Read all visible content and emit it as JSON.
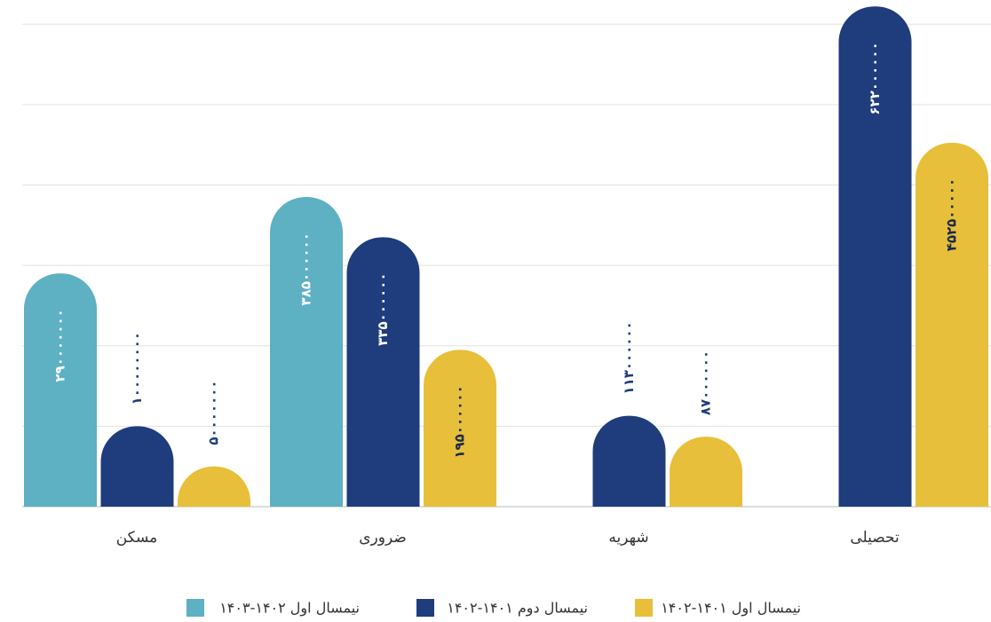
{
  "chart_data": {
    "type": "bar",
    "categories": [
      "مسکن",
      "ضروری",
      "شهریه",
      "تحصیلی"
    ],
    "series": [
      {
        "name": "نیمسال اول ۱۴۰۲-۱۴۰۳",
        "color": "#5eb0c3",
        "values": [
          290000000,
          385000000,
          null,
          null
        ],
        "value_labels": [
          "۲۹۰۰۰۰۰۰۰",
          "۳۸۵۰۰۰۰۰۰",
          null,
          null
        ]
      },
      {
        "name": "نیمسال دوم ۱۴۰۱-۱۴۰۲",
        "color": "#1f3c7c",
        "values": [
          100000000,
          335000000,
          113000000,
          622000000
        ],
        "value_labels": [
          "۱۰۰۰۰۰۰۰۰",
          "۳۳۵۰۰۰۰۰۰",
          "۱۱۳۰۰۰۰۰۰",
          "۶۲۲۰۰۰۰۰۰"
        ]
      },
      {
        "name": "نیمسال اول ۱۴۰۱-۱۴۰۲",
        "color": "#e8bf3a",
        "values": [
          50000000,
          195000000,
          87000000,
          452500000
        ],
        "value_labels": [
          "۵۰۰۰۰۰۰۰",
          "۱۹۵۰۰۰۰۰۰",
          "۸۷۰۰۰۰۰۰",
          "۴۵۲۵۰۰۰۰۰"
        ]
      }
    ],
    "ylim": [
      0,
      630000000
    ],
    "yticks": [
      0,
      100000000,
      200000000,
      300000000,
      400000000,
      500000000,
      600000000
    ],
    "grid": true
  }
}
